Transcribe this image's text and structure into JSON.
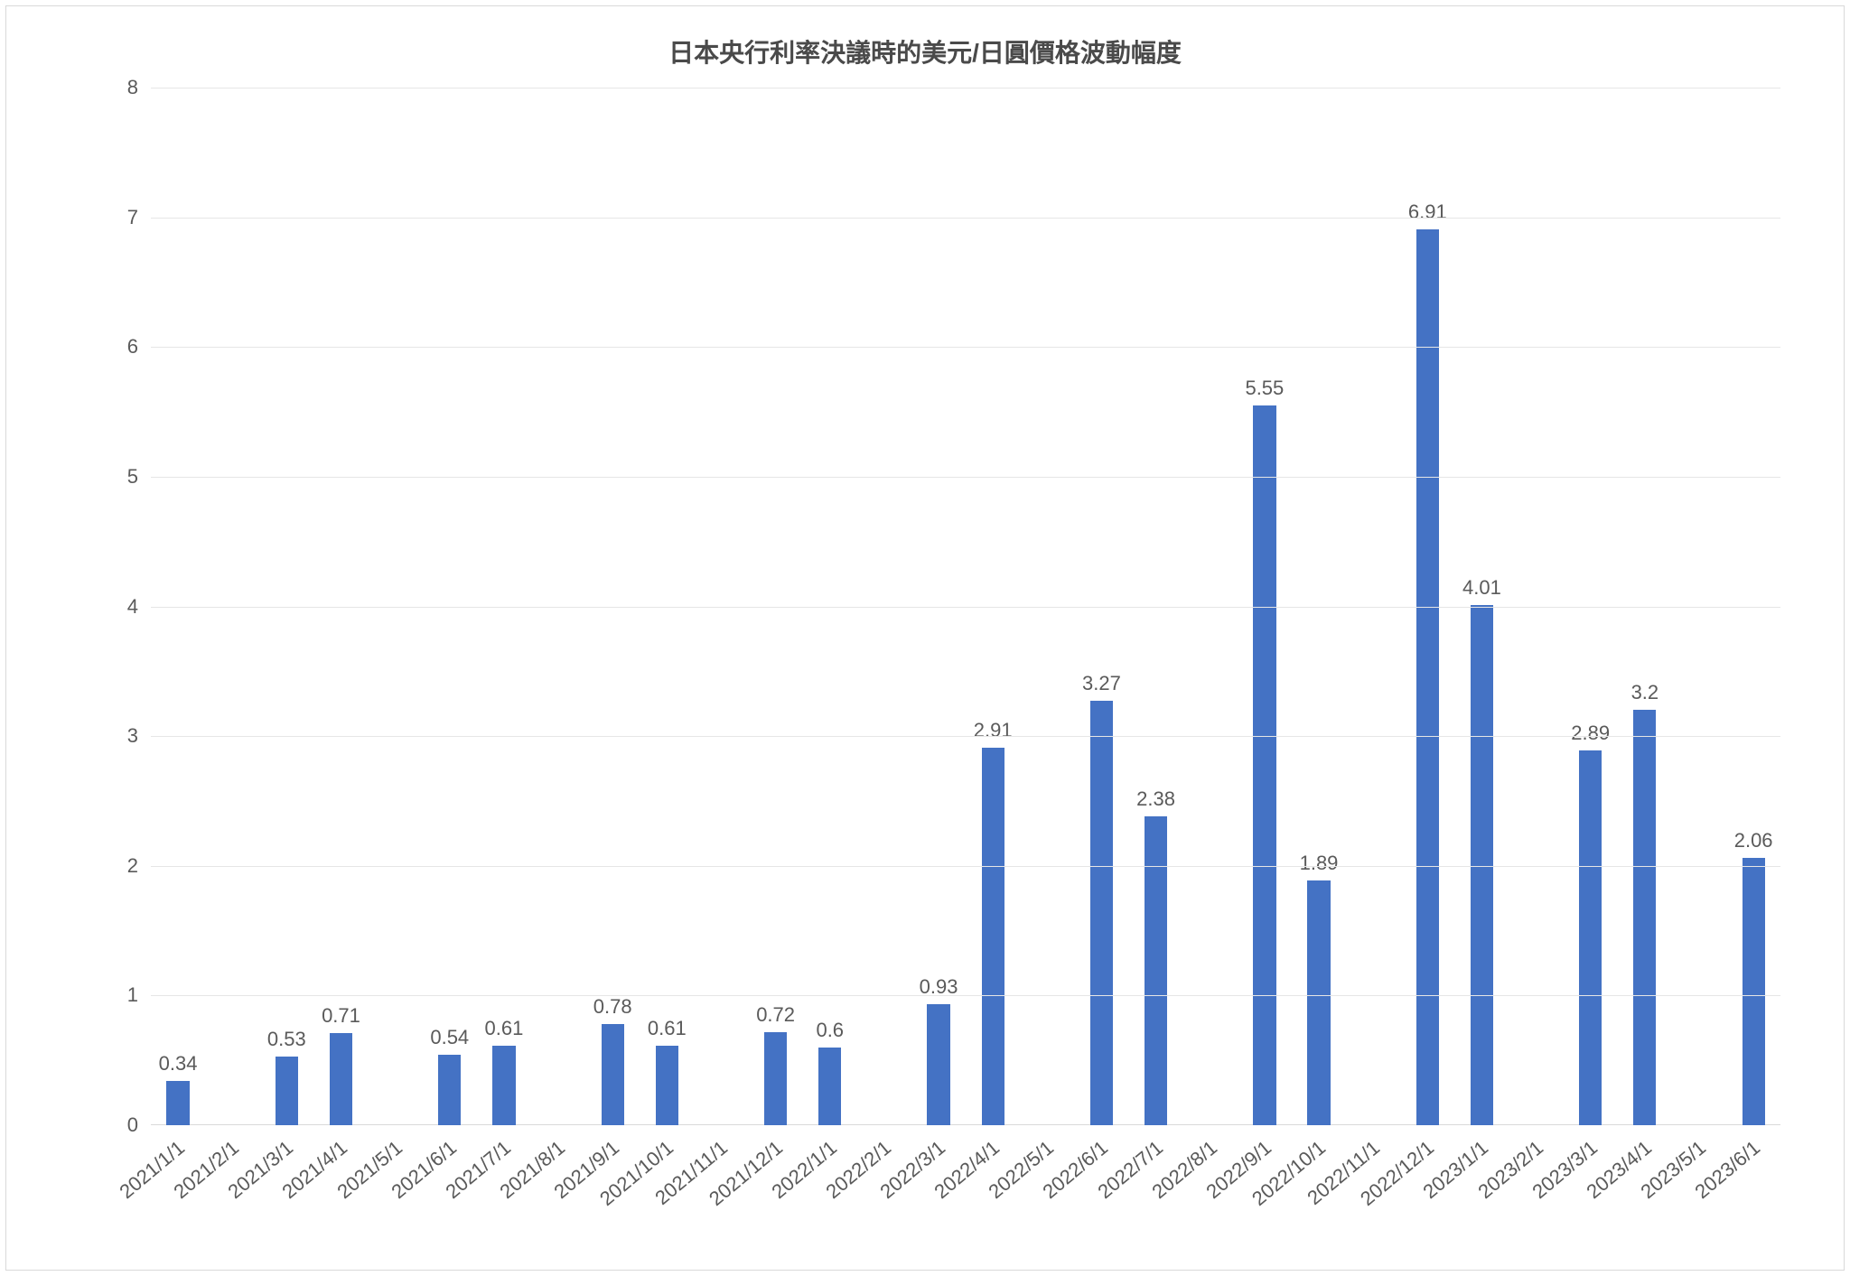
{
  "chart": {
    "type": "bar",
    "title": "日本央行利率決議時的美元/日圓價格波動幅度",
    "title_fontsize": 28,
    "title_color": "#4a4a4a",
    "frame_border_color": "#d9d9d9",
    "background_color": "#ffffff",
    "grid_color": "#e6e6e6",
    "axis_line_color": "#d9d9d9",
    "bar_color": "#4472c4",
    "label_fontsize": 22,
    "label_color": "#5a5a5a",
    "y": {
      "min": 0,
      "max": 8,
      "ticks": [
        0,
        1,
        2,
        3,
        4,
        5,
        6,
        7,
        8
      ]
    },
    "x_labels": [
      "2021/1/1",
      "2021/2/1",
      "2021/3/1",
      "2021/4/1",
      "2021/5/1",
      "2021/6/1",
      "2021/7/1",
      "2021/8/1",
      "2021/9/1",
      "2021/10/1",
      "2021/11/1",
      "2021/12/1",
      "2022/1/1",
      "2022/2/1",
      "2022/3/1",
      "2022/4/1",
      "2022/5/1",
      "2022/6/1",
      "2022/7/1",
      "2022/8/1",
      "2022/9/1",
      "2022/10/1",
      "2022/11/1",
      "2022/12/1",
      "2023/1/1",
      "2023/2/1",
      "2023/3/1",
      "2023/4/1",
      "2023/5/1",
      "2023/6/1"
    ],
    "values": [
      0.34,
      null,
      0.53,
      0.71,
      null,
      0.54,
      0.61,
      null,
      0.78,
      0.61,
      null,
      0.72,
      0.6,
      null,
      0.93,
      2.91,
      null,
      3.27,
      2.38,
      null,
      5.55,
      1.89,
      null,
      6.91,
      4.01,
      null,
      2.89,
      3.2,
      null,
      2.06
    ]
  }
}
